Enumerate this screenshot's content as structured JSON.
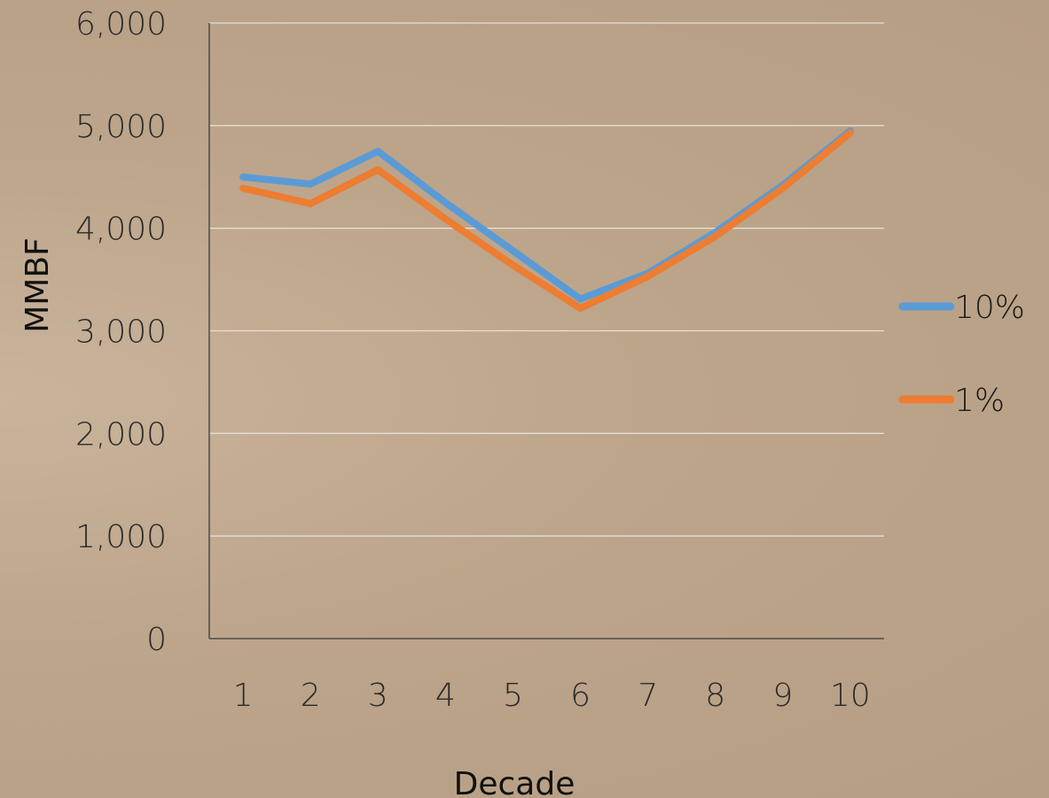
{
  "chart_data": {
    "type": "line",
    "title": "",
    "xlabel": "Decade",
    "ylabel": "MMBF",
    "categories": [
      "1",
      "2",
      "3",
      "4",
      "5",
      "6",
      "7",
      "8",
      "9",
      "10"
    ],
    "ylim": [
      0,
      6000
    ],
    "yticks": [
      "0",
      "1,000",
      "2,000",
      "3,000",
      "4,000",
      "5,000",
      "6,000"
    ],
    "ytick_values": [
      0,
      1000,
      2000,
      3000,
      4000,
      5000,
      6000
    ],
    "grid": true,
    "legend_position": "right",
    "series": [
      {
        "name": "10%",
        "color": "#5b9bd5",
        "values": [
          4500,
          4430,
          4750,
          4250,
          3780,
          3310,
          3560,
          3960,
          4420,
          4950
        ]
      },
      {
        "name": "1%",
        "color": "#ed7d31",
        "values": [
          4390,
          4240,
          4570,
          4090,
          3640,
          3220,
          3530,
          3920,
          4390,
          4930
        ]
      }
    ]
  }
}
